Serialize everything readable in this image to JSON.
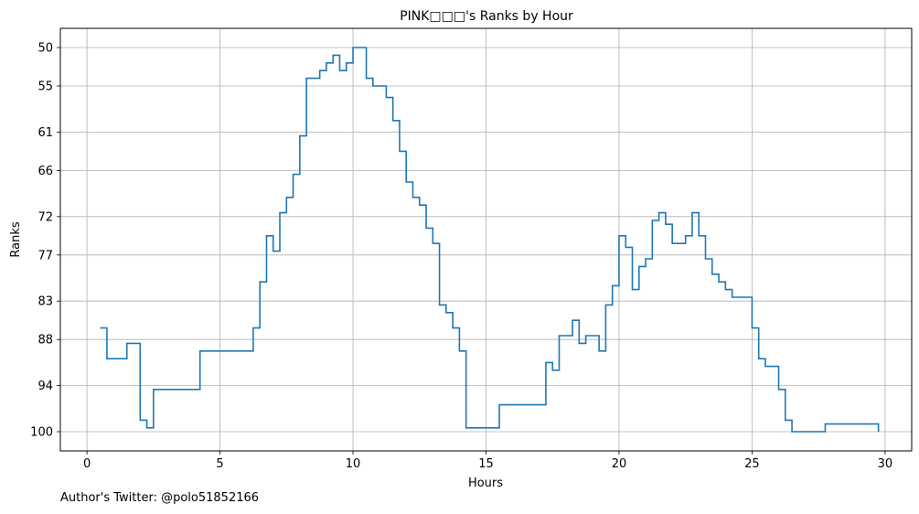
{
  "chart_data": {
    "type": "line",
    "step": true,
    "title": "PINK□□□'s Ranks by Hour",
    "xlabel": "Hours",
    "ylabel": "Ranks",
    "xlim": [
      -1,
      31
    ],
    "ylim": [
      102.5,
      47.5
    ],
    "y_inverted": true,
    "grid": true,
    "x_ticks": [
      0,
      5,
      10,
      15,
      20,
      25,
      30
    ],
    "y_ticks": [
      50,
      55,
      61,
      66,
      72,
      77,
      83,
      88,
      94,
      100
    ],
    "line_color": "#1f77b4",
    "series": [
      {
        "x": [
          0.5,
          0.75,
          1.0,
          1.25,
          1.5,
          1.75,
          2.0,
          2.25,
          2.5,
          2.75,
          3.0,
          3.25,
          3.5,
          3.75,
          4.0,
          4.25,
          4.5,
          4.75,
          5.0,
          5.25,
          5.5,
          5.75,
          6.0,
          6.25,
          6.5,
          6.75,
          7.0,
          7.25,
          7.5,
          7.75,
          8.0,
          8.25,
          8.5,
          8.75,
          9.0,
          9.25,
          9.5,
          9.75,
          10.0,
          10.25,
          10.5,
          10.75,
          11.0,
          11.25,
          11.5,
          11.75,
          12.0,
          12.25,
          12.5,
          12.75,
          13.0,
          13.25,
          13.5,
          13.75,
          14.0,
          14.25,
          14.5,
          14.75,
          15.0,
          15.25,
          15.5,
          15.75,
          16.0,
          16.25,
          16.5,
          16.75,
          17.0,
          17.25,
          17.5,
          17.75,
          18.0,
          18.25,
          18.5,
          18.75,
          19.0,
          19.25,
          19.5,
          19.75,
          20.0,
          20.25,
          20.5,
          20.75,
          21.0,
          21.25,
          21.5,
          21.75,
          22.0,
          22.25,
          22.5,
          22.75,
          23.0,
          23.25,
          23.5,
          23.75,
          24.0,
          24.25,
          24.5,
          24.75,
          25.0,
          25.25,
          25.5,
          25.75,
          26.0,
          26.25,
          26.5,
          26.75,
          27.0,
          27.25,
          27.5,
          27.75,
          28.0,
          28.25,
          28.5,
          28.75,
          29.0,
          29.25,
          29.5,
          29.75
        ],
        "y": [
          86.5,
          90.5,
          90.5,
          90.5,
          88.5,
          88.5,
          98.5,
          99.5,
          94.5,
          94.5,
          94.5,
          94.5,
          94.5,
          94.5,
          94.5,
          89.5,
          89.5,
          89.5,
          89.5,
          89.5,
          89.5,
          89.5,
          89.5,
          86.5,
          80.5,
          74.5,
          76.5,
          71.5,
          69.5,
          66.5,
          61.5,
          54.0,
          54.0,
          53.0,
          52.0,
          51.0,
          53.0,
          52.0,
          50.0,
          50.0,
          54.0,
          55.0,
          55.0,
          56.5,
          59.5,
          63.5,
          67.5,
          69.5,
          70.5,
          73.5,
          75.5,
          83.5,
          84.5,
          86.5,
          89.5,
          99.5,
          99.5,
          99.5,
          99.5,
          99.5,
          96.5,
          96.5,
          96.5,
          96.5,
          96.5,
          96.5,
          96.5,
          91.0,
          92.0,
          87.5,
          87.5,
          85.5,
          88.5,
          87.5,
          87.5,
          89.5,
          83.5,
          81.0,
          74.5,
          76.0,
          81.5,
          78.5,
          77.5,
          72.5,
          71.5,
          73.0,
          75.5,
          75.5,
          74.5,
          71.5,
          74.5,
          77.5,
          79.5,
          80.5,
          81.5,
          82.5,
          82.5,
          82.5,
          86.5,
          90.5,
          91.5,
          91.5,
          94.5,
          98.5,
          100.0,
          100.0,
          100.0,
          100.0,
          100.0,
          99.0,
          99.0,
          99.0,
          99.0,
          99.0,
          99.0,
          99.0,
          99.0,
          100.0
        ]
      }
    ]
  },
  "footer": {
    "author": "Author's Twitter: @polo51852166"
  }
}
